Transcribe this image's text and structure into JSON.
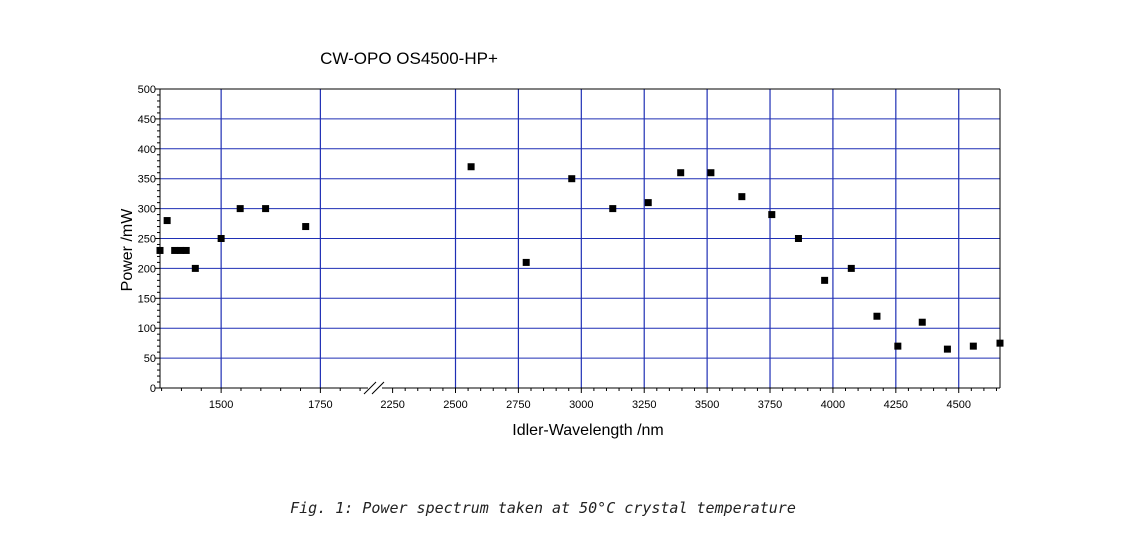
{
  "chart_data": {
    "type": "scatter",
    "title": "CW-OPO OS4500-HP+",
    "xlabel": "Idler-Wavelength /nm",
    "ylabel": "Power /mW",
    "caption": "Fig. 1: Power spectrum taken at 50°C crystal temperature",
    "grid": true,
    "axis_break": "between 1750 and 2500 nm",
    "colors": {
      "grid": "#1f2fb5",
      "marker": "#000000",
      "axis": "#000000"
    },
    "x_segments": [
      {
        "range": [
          1346,
          1875
        ],
        "ticks": [
          1500,
          1750
        ]
      },
      {
        "range": [
          2188,
          4664
        ],
        "ticks": [
          2250,
          2500,
          2750,
          3000,
          3250,
          3500,
          3750,
          4000,
          4250,
          4500
        ]
      }
    ],
    "ylim": [
      0,
      500
    ],
    "y_ticks": [
      0,
      50,
      100,
      150,
      200,
      250,
      300,
      350,
      400,
      450,
      500
    ],
    "series": [
      {
        "points": [
          [
            1346,
            230
          ],
          [
            1364,
            280
          ],
          [
            1383,
            230
          ],
          [
            1398,
            230
          ],
          [
            1412,
            230
          ],
          [
            1435,
            200
          ],
          [
            1500,
            250
          ],
          [
            1548,
            300
          ],
          [
            1612,
            300
          ],
          [
            1713,
            270
          ],
          [
            2562,
            370
          ],
          [
            2781,
            210
          ],
          [
            2962,
            350
          ],
          [
            3125,
            300
          ],
          [
            3266,
            310
          ],
          [
            3395,
            360
          ],
          [
            3515,
            360
          ],
          [
            3638,
            320
          ],
          [
            3757,
            290
          ],
          [
            3863,
            250
          ],
          [
            3967,
            180
          ],
          [
            4073,
            200
          ],
          [
            4175,
            120
          ],
          [
            4258,
            70
          ],
          [
            4355,
            110
          ],
          [
            4455,
            65
          ],
          [
            4558,
            70
          ],
          [
            4664,
            75
          ]
        ]
      }
    ]
  }
}
